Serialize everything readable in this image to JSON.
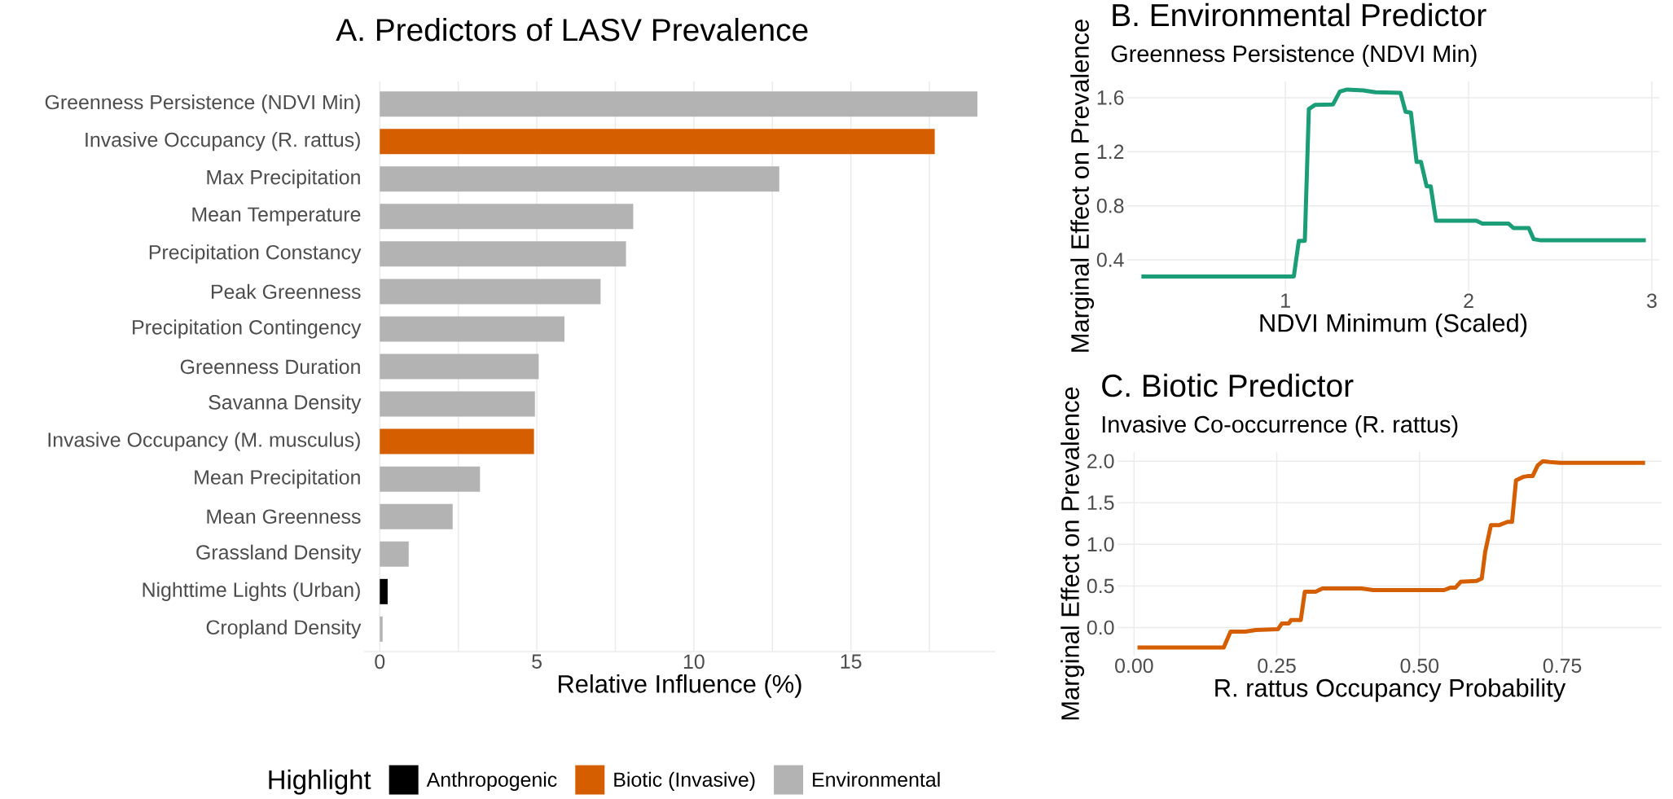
{
  "chart_data": [
    {
      "type": "bar",
      "orientation": "horizontal",
      "title": "A. Predictors of LASV Prevalence",
      "xlabel": "Relative Influence (%)",
      "categories": [
        "Greenness Persistence (NDVI Min)",
        "Invasive Occupancy (R. rattus)",
        "Max Precipitation",
        "Mean Temperature",
        "Precipitation Constancy",
        "Peak Greenness",
        "Precipitation Contingency",
        "Greenness Duration",
        "Savanna Density",
        "Invasive Occupancy (M. musculus)",
        "Mean Precipitation",
        "Mean Greenness",
        "Grassland Density",
        "Nighttime Lights (Urban)",
        "Cropland Density"
      ],
      "series": [
        {
          "name": "Anthropogenic",
          "color": "#000000",
          "values": [
            null,
            null,
            null,
            null,
            null,
            null,
            null,
            null,
            null,
            null,
            null,
            null,
            null,
            0.25,
            null
          ]
        },
        {
          "name": "Biotic (Invasive)",
          "color": "#d55e00",
          "values": [
            null,
            17.67,
            null,
            null,
            null,
            null,
            null,
            null,
            null,
            4.91,
            null,
            null,
            null,
            null,
            null
          ]
        },
        {
          "name": "Environmental",
          "color": "#b3b3b3",
          "values": [
            19.03,
            null,
            12.72,
            8.07,
            7.84,
            7.03,
            5.88,
            5.06,
            4.94,
            null,
            3.19,
            2.32,
            0.92,
            null,
            0.09
          ]
        }
      ],
      "legend_title": "Highlight",
      "legend": "bottom",
      "grid": "x",
      "xlim": [
        -0.5,
        19.6
      ],
      "xticks": [
        0,
        {
          "value": 2.5,
          "label": null
        },
        5,
        {
          "value": 7.5,
          "label": null
        },
        10,
        {
          "value": 12.5,
          "label": null
        },
        15,
        {
          "value": 17.5,
          "label": null
        }
      ]
    },
    {
      "type": "line",
      "title": "B. Environmental Predictor",
      "subtitle": "Greenness Persistence (NDVI Min)",
      "xlabel": "NDVI Minimum (Scaled)",
      "ylabel": "Marginal Effect on Prevalence",
      "x": [
        0.214,
        1.046,
        1.073,
        1.106,
        1.128,
        1.161,
        1.26,
        1.297,
        1.337,
        1.425,
        1.491,
        1.628,
        1.656,
        1.685,
        1.716,
        1.74,
        1.771,
        1.793,
        1.822,
        2.042,
        2.075,
        2.218,
        2.245,
        2.328,
        2.355,
        2.394,
        2.967
      ],
      "series": [
        {
          "color": "#1b9e77",
          "values": [
            0.277,
            0.277,
            0.54,
            0.54,
            1.516,
            1.546,
            1.55,
            1.645,
            1.66,
            1.654,
            1.64,
            1.636,
            1.495,
            1.49,
            1.125,
            1.125,
            0.944,
            0.944,
            0.689,
            0.689,
            0.668,
            0.668,
            0.635,
            0.635,
            0.553,
            0.544,
            0.544
          ]
        }
      ],
      "grid": true,
      "xlim": [
        0.137,
        3.04
      ],
      "ylim": [
        0.171,
        1.72
      ],
      "xticks": [
        1,
        2,
        3
      ],
      "yticks": [
        0.4,
        0.8,
        1.2,
        1.6
      ]
    },
    {
      "type": "line",
      "title": "C. Biotic Predictor",
      "subtitle": "Invasive Co-occurrence (R. rattus)",
      "xlabel": "R. rattus Occupancy Probability",
      "ylabel": "Marginal Effect on Prevalence",
      "x": [
        0.006,
        0.157,
        0.169,
        0.195,
        0.213,
        0.252,
        0.259,
        0.271,
        0.275,
        0.292,
        0.299,
        0.318,
        0.33,
        0.398,
        0.419,
        0.543,
        0.554,
        0.563,
        0.572,
        0.6,
        0.609,
        0.615,
        0.625,
        0.639,
        0.654,
        0.662,
        0.669,
        0.681,
        0.689,
        0.698,
        0.707,
        0.716,
        0.728,
        0.746,
        0.895
      ],
      "series": [
        {
          "color": "#d55e00",
          "values": [
            -0.24,
            -0.24,
            -0.05,
            -0.05,
            -0.03,
            -0.02,
            0.05,
            0.05,
            0.09,
            0.09,
            0.43,
            0.43,
            0.47,
            0.47,
            0.45,
            0.45,
            0.48,
            0.48,
            0.55,
            0.56,
            0.59,
            0.91,
            1.23,
            1.23,
            1.27,
            1.27,
            1.77,
            1.81,
            1.82,
            1.82,
            1.95,
            2.0,
            1.99,
            1.98,
            1.98
          ]
        }
      ],
      "grid": true,
      "xlim": [
        -0.029,
        0.924
      ],
      "ylim": [
        -0.338,
        2.11
      ],
      "xticks": [
        {
          "value": 0,
          "label": "0.00"
        },
        0.25,
        {
          "value": 0.5,
          "label": "0.50"
        },
        0.75
      ],
      "yticks": [
        {
          "value": 0,
          "label": "0.0"
        },
        0.5,
        {
          "value": 1,
          "label": "1.0"
        },
        1.5,
        {
          "value": 2,
          "label": "2.0"
        }
      ]
    }
  ]
}
